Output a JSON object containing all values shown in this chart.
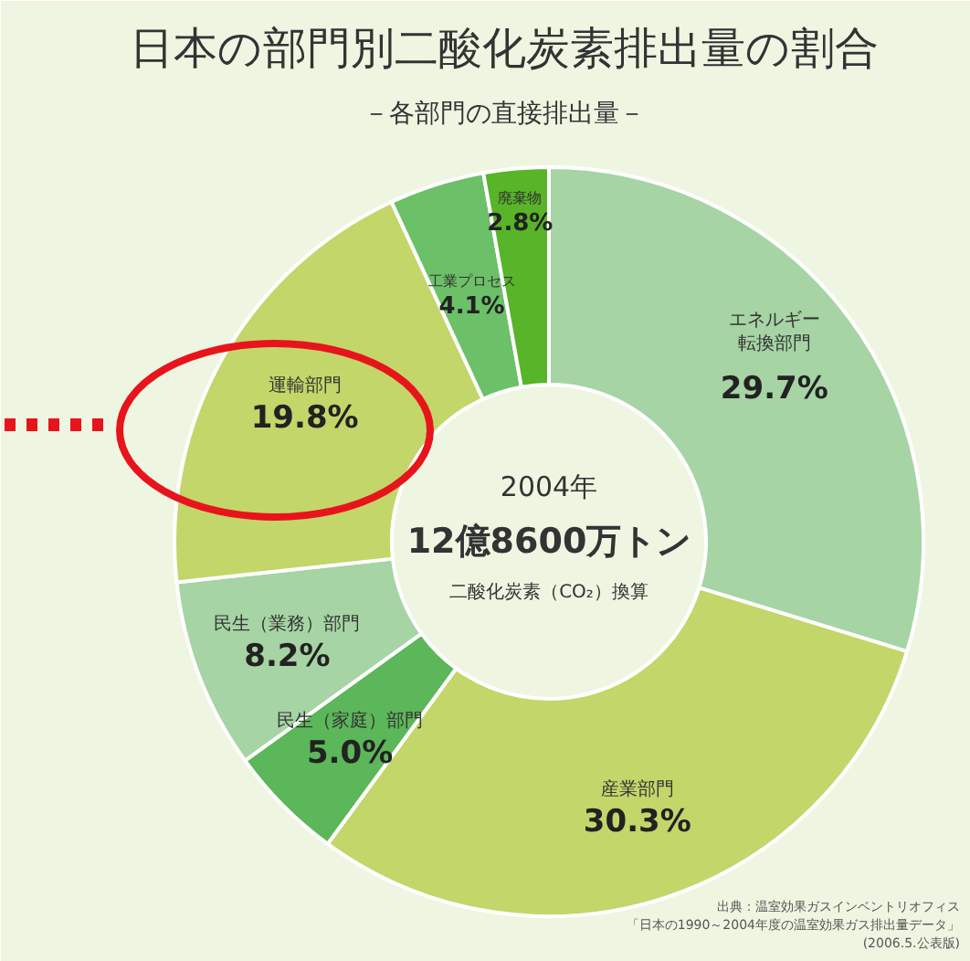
{
  "chart_data": {
    "type": "donut",
    "title": "日本の部門別二酸化炭素排出量の割合",
    "subtitle": "－各部門の直接排出量－",
    "categories": [
      "エネルギー転換部門",
      "産業部門",
      "民生（家庭）部門",
      "民生（業務）部門",
      "運輸部門",
      "工業プロセス",
      "廃棄物"
    ],
    "values": [
      29.7,
      30.3,
      5.0,
      8.2,
      19.8,
      4.1,
      2.8
    ],
    "colors": [
      "#a6d4a4",
      "#c3d66a",
      "#5cb65a",
      "#a6d4a4",
      "#c3d66a",
      "#6cc068",
      "#58b428"
    ],
    "data_labels": true,
    "value_labels": [
      "29.7%",
      "30.3%",
      "5.0%",
      "8.2%",
      "19.8%",
      "4.1%",
      "2.8%"
    ],
    "annotations": [
      "2004年",
      "12億8600万トン",
      "二酸化炭素（CO₂）換算",
      "出典：温室効果ガスインベントリオフィス",
      "「日本の1990～2004年度の温室効果ガス排出量データ」",
      "(2006.5.公表版)"
    ]
  }
}
